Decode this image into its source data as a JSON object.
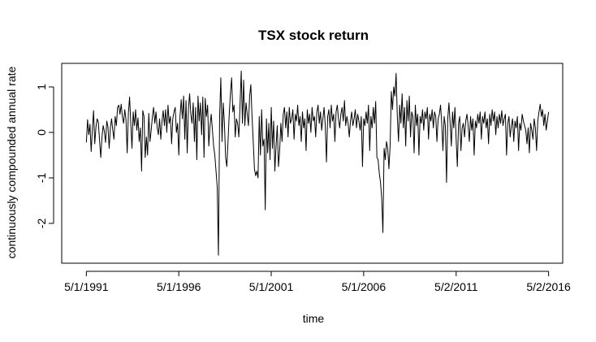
{
  "chart_data": {
    "type": "line",
    "title": "TSX stock return",
    "xlabel": "time",
    "ylabel": "continuously compounded annual rate",
    "x_tick_labels": [
      "5/1/1991",
      "5/1/1996",
      "5/1/2001",
      "5/1/2006",
      "5/2/2011",
      "5/2/2016"
    ],
    "y_ticks": [
      -2,
      -1,
      0,
      1
    ],
    "ylim": [
      -2.9,
      1.45
    ],
    "xlim_years": [
      1990.0,
      2017.1
    ],
    "x_start": "1991-05-01",
    "x_end": "2016-05-02",
    "frequency": "monthly",
    "grid": false,
    "legend": "none",
    "series": [
      {
        "color": "#000000",
        "values": [
          -0.22,
          0.28,
          -0.05,
          0.18,
          -0.42,
          0.05,
          0.48,
          -0.25,
          0.12,
          0.3,
          0.22,
          -0.18,
          -0.55,
          -0.1,
          0.15,
          0.02,
          -0.22,
          0.25,
          0.12,
          -0.35,
          0.1,
          0.3,
          0.05,
          -0.15,
          0.35,
          0.15,
          0.55,
          0.6,
          0.4,
          0.62,
          0.35,
          0.2,
          0.5,
          0.28,
          -0.45,
          0.42,
          0.78,
          0.2,
          -0.35,
          0.45,
          0.15,
          0.5,
          0.05,
          0.32,
          -0.2,
          0.1,
          -0.85,
          0.48,
          0.35,
          -0.55,
          -0.1,
          -0.5,
          0.42,
          -0.2,
          0.05,
          0.35,
          0.55,
          0.2,
          0.45,
          0.1,
          -0.05,
          0.3,
          -0.15,
          0.25,
          0.48,
          0.15,
          0.5,
          0.0,
          0.6,
          0.2,
          0.35,
          -0.25,
          0.3,
          0.45,
          0.55,
          0.0,
          0.2,
          -0.5,
          0.35,
          0.72,
          0.3,
          0.8,
          -0.15,
          0.7,
          -0.45,
          0.5,
          0.85,
          0.4,
          0.2,
          0.65,
          -0.2,
          0.55,
          -0.6,
          0.8,
          0.25,
          0.65,
          -0.05,
          0.78,
          -0.55,
          0.75,
          0.35,
          0.6,
          -0.3,
          0.15,
          0.4,
          0.05,
          -0.3,
          -0.5,
          -0.85,
          -1.2,
          -2.7,
          0.35,
          1.2,
          -0.2,
          0.65,
          0.2,
          -0.55,
          -0.75,
          -0.2,
          0.4,
          0.85,
          1.2,
          0.45,
          0.6,
          -0.1,
          0.3,
          0.2,
          -0.1,
          0.6,
          1.35,
          0.2,
          1.15,
          0.15,
          0.65,
          0.4,
          0.15,
          0.8,
          1.05,
          0.35,
          -0.2,
          -0.8,
          -0.95,
          -0.85,
          -1.0,
          0.35,
          -0.5,
          0.5,
          -0.3,
          -0.15,
          -1.7,
          0.3,
          -0.45,
          0.2,
          -0.6,
          0.55,
          -0.35,
          0.25,
          -0.85,
          -0.3,
          0.15,
          -0.75,
          -0.4,
          0.2,
          -0.2,
          0.4,
          0.55,
          0.1,
          0.45,
          -0.1,
          0.55,
          0.2,
          0.3,
          0.5,
          -0.15,
          0.4,
          0.25,
          0.6,
          0.15,
          0.35,
          -0.2,
          0.45,
          0.1,
          0.3,
          -0.4,
          0.5,
          0.2,
          0.4,
          0.0,
          0.55,
          0.25,
          0.35,
          -0.1,
          0.45,
          0.6,
          0.2,
          0.45,
          0.05,
          0.3,
          0.55,
          0.15,
          -0.65,
          0.35,
          0.5,
          0.1,
          0.6,
          0.25,
          0.4,
          -0.2,
          0.45,
          0.6,
          0.3,
          0.1,
          0.4,
          0.55,
          0.25,
          0.7,
          0.15,
          0.35,
          0.2,
          -0.1,
          0.25,
          0.45,
          0.15,
          0.3,
          0.5,
          0.1,
          0.4,
          0.25,
          0.05,
          0.35,
          -0.75,
          0.3,
          0.15,
          0.45,
          0.2,
          0.6,
          -0.4,
          0.35,
          0.1,
          0.55,
          0.2,
          0.68,
          -0.55,
          -0.6,
          -0.9,
          -1.1,
          -1.45,
          -2.2,
          -0.35,
          -0.6,
          -0.2,
          -0.35,
          -0.8,
          -0.3,
          0.9,
          0.5,
          1.0,
          0.8,
          1.3,
          0.35,
          -0.2,
          0.6,
          0.2,
          0.85,
          0.1,
          0.55,
          -0.3,
          0.7,
          0.25,
          0.8,
          -0.1,
          0.45,
          0.35,
          -0.45,
          0.6,
          0.15,
          0.4,
          -0.5,
          0.35,
          0.2,
          0.5,
          0.05,
          0.45,
          0.3,
          0.55,
          -0.15,
          0.4,
          0.25,
          0.5,
          0.1,
          0.45,
          0.35,
          -0.2,
          0.3,
          0.4,
          0.6,
          0.2,
          -0.4,
          0.35,
          0.15,
          -1.1,
          0.3,
          0.65,
          0.2,
          -0.3,
          0.45,
          0.1,
          0.55,
          -0.15,
          -0.75,
          0.2,
          0.35,
          -0.4,
          0.1,
          0.2,
          -0.1,
          0.25,
          0.4,
          0.15,
          -0.2,
          0.35,
          0.05,
          0.3,
          -0.5,
          0.25,
          0.1,
          0.4,
          0.2,
          0.45,
          -0.15,
          0.35,
          0.2,
          0.45,
          0.1,
          0.3,
          -0.25,
          0.4,
          0.15,
          0.5,
          0.25,
          0.45,
          -0.05,
          0.35,
          0.1,
          0.4,
          0.2,
          0.48,
          0.15,
          0.3,
          0.4,
          -0.5,
          0.2,
          0.35,
          -0.1,
          0.15,
          0.3,
          -0.2,
          0.25,
          0.1,
          0.35,
          -0.4,
          0.2,
          0.05,
          0.4,
          0.25,
          0.15,
          0.05,
          -0.25,
          0.1,
          -0.45,
          0.2,
          0.05,
          -0.15,
          0.3,
          0.1,
          -0.4,
          0.25,
          0.45,
          0.62,
          0.35,
          0.5,
          0.15,
          0.4,
          0.05,
          0.25,
          0.45
        ]
      }
    ]
  }
}
